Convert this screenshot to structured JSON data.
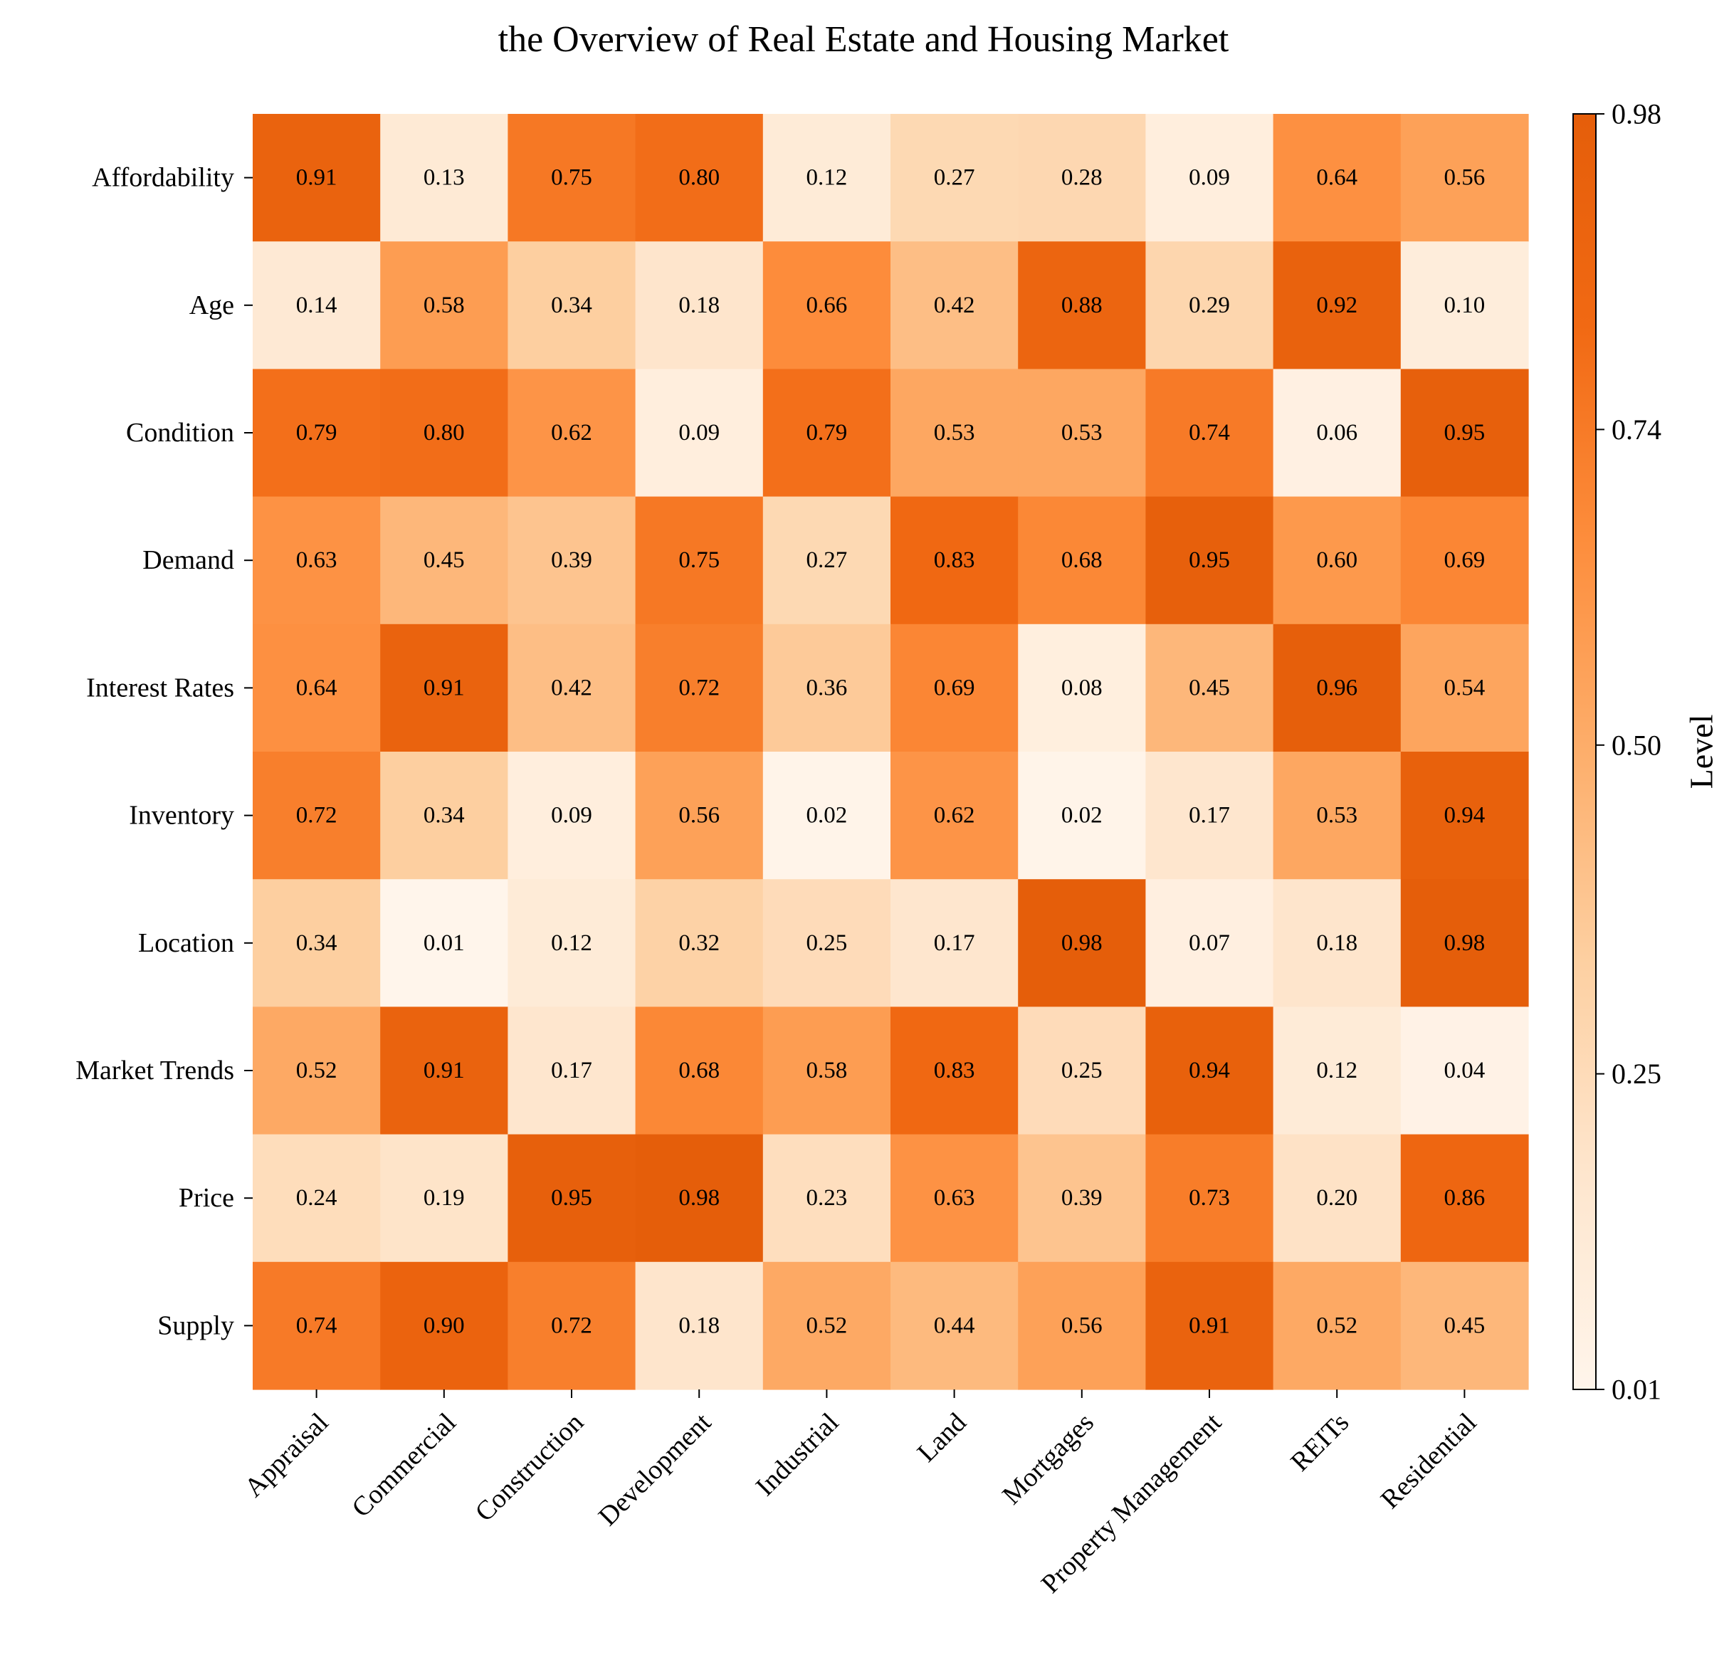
{
  "chart_data": {
    "type": "heatmap",
    "title": "the Overview of Real Estate and Housing Market",
    "x_categories": [
      "Appraisal",
      "Commercial",
      "Construction",
      "Development",
      "Industrial",
      "Land",
      "Mortgages",
      "Property Management",
      "REITs",
      "Residential"
    ],
    "y_categories": [
      "Affordability",
      "Age",
      "Condition",
      "Demand",
      "Interest Rates",
      "Inventory",
      "Location",
      "Market Trends",
      "Price",
      "Supply"
    ],
    "values": [
      [
        0.91,
        0.13,
        0.75,
        0.8,
        0.12,
        0.27,
        0.28,
        0.09,
        0.64,
        0.56
      ],
      [
        0.14,
        0.58,
        0.34,
        0.18,
        0.66,
        0.42,
        0.88,
        0.29,
        0.92,
        0.1
      ],
      [
        0.79,
        0.8,
        0.62,
        0.09,
        0.79,
        0.53,
        0.53,
        0.74,
        0.06,
        0.95
      ],
      [
        0.63,
        0.45,
        0.39,
        0.75,
        0.27,
        0.83,
        0.68,
        0.95,
        0.6,
        0.69
      ],
      [
        0.64,
        0.91,
        0.42,
        0.72,
        0.36,
        0.69,
        0.08,
        0.45,
        0.96,
        0.54
      ],
      [
        0.72,
        0.34,
        0.09,
        0.56,
        0.02,
        0.62,
        0.02,
        0.17,
        0.53,
        0.94
      ],
      [
        0.34,
        0.01,
        0.12,
        0.32,
        0.25,
        0.17,
        0.98,
        0.07,
        0.18,
        0.98
      ],
      [
        0.52,
        0.91,
        0.17,
        0.68,
        0.58,
        0.83,
        0.25,
        0.94,
        0.12,
        0.04
      ],
      [
        0.24,
        0.19,
        0.95,
        0.98,
        0.23,
        0.63,
        0.39,
        0.73,
        0.2,
        0.86
      ],
      [
        0.74,
        0.9,
        0.72,
        0.18,
        0.52,
        0.44,
        0.56,
        0.91,
        0.52,
        0.45
      ]
    ],
    "value_format": "0.00",
    "colorbar": {
      "label": "Level",
      "min": 0.01,
      "max": 0.98,
      "ticks": [
        0.01,
        0.25,
        0.5,
        0.74,
        0.98
      ],
      "tick_labels": [
        "0.01",
        "0.25",
        "0.50",
        "0.74",
        "0.98"
      ],
      "position": "right"
    },
    "colormap": [
      "#fff5eb",
      "#fee6ce",
      "#fdd0a2",
      "#fdae6b",
      "#fd8d3c",
      "#f16913",
      "#e55e0a"
    ],
    "grid": false
  }
}
